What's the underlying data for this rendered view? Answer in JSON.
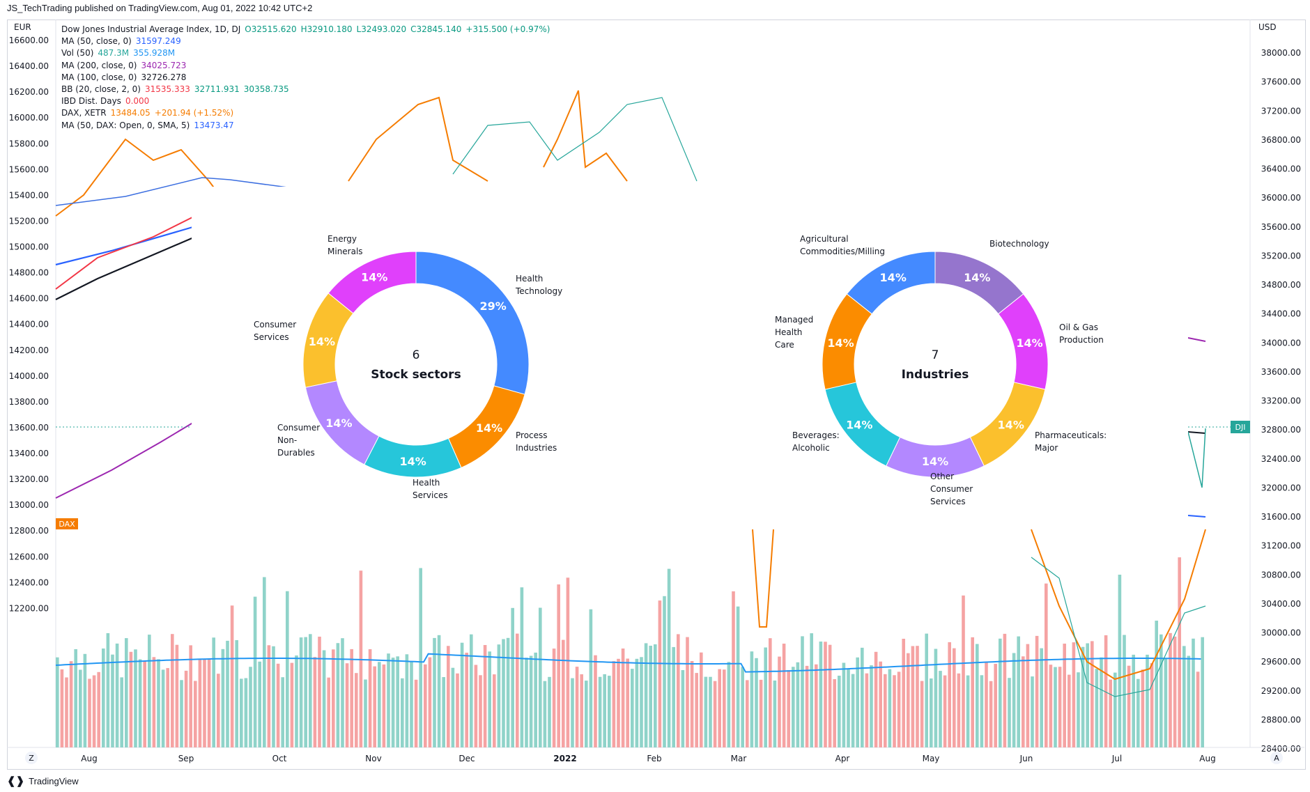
{
  "publisher_line": "JS_TechTrading published on TradingView.com, Aug 01, 2022 10:42 UTC+2",
  "footer_brand": "TradingView",
  "left_currency": "EUR",
  "right_currency": "USD",
  "legend": [
    {
      "label": "Dow Jones Industrial Average Index, 1D, DJ",
      "values": [
        {
          "text": "O32515.620",
          "color": "#089981"
        },
        {
          "text": "H32910.180",
          "color": "#089981"
        },
        {
          "text": "L32493.020",
          "color": "#089981"
        },
        {
          "text": "C32845.140",
          "color": "#089981"
        },
        {
          "text": "+315.500 (+0.97%)",
          "color": "#089981"
        }
      ]
    },
    {
      "label": "MA (50, close, 0)",
      "values": [
        {
          "text": "31597.249",
          "color": "#2962ff"
        }
      ]
    },
    {
      "label": "Vol (50)",
      "values": [
        {
          "text": "487.3M",
          "color": "#26a69a"
        },
        {
          "text": "355.928M",
          "color": "#2196f3"
        }
      ]
    },
    {
      "label": "MA (200, close, 0)",
      "values": [
        {
          "text": "34025.723",
          "color": "#9c27b0"
        }
      ]
    },
    {
      "label": "MA (100, close, 0)",
      "values": [
        {
          "text": "32726.278",
          "color": "#131722"
        }
      ]
    },
    {
      "label": "BB (20, close, 2, 0)",
      "values": [
        {
          "text": "31535.333",
          "color": "#f23645"
        },
        {
          "text": "32711.931",
          "color": "#089981"
        },
        {
          "text": "30358.735",
          "color": "#089981"
        }
      ]
    },
    {
      "label": "IBD Dist. Days",
      "values": [
        {
          "text": "0.000",
          "color": "#f23645"
        }
      ]
    },
    {
      "label": "DAX, XETR",
      "values": [
        {
          "text": "13484.05",
          "color": "#f57c00"
        },
        {
          "text": "+201.94 (+1.52%)",
          "color": "#f57c00"
        }
      ]
    },
    {
      "label": "MA (50, DAX: Open, 0, SMA, 5)",
      "values": [
        {
          "text": "13473.47",
          "color": "#2962ff"
        }
      ]
    }
  ],
  "left_ticks": [
    "16600.00",
    "16400.00",
    "16200.00",
    "16000.00",
    "15800.00",
    "15600.00",
    "15400.00",
    "15200.00",
    "15000.00",
    "14800.00",
    "14600.00",
    "14400.00",
    "14200.00",
    "14000.00",
    "13800.00",
    "13600.00",
    "13400.00",
    "13200.00",
    "13000.00",
    "12800.00",
    "12600.00",
    "12400.00",
    "12200.00"
  ],
  "right_ticks": [
    "38000.00",
    "37600.00",
    "37200.00",
    "36800.00",
    "36400.00",
    "36000.00",
    "35600.00",
    "35200.00",
    "34800.00",
    "34400.00",
    "34000.00",
    "33600.00",
    "33200.00",
    "32800.00",
    "32400.00",
    "32000.00",
    "31600.00",
    "31200.00",
    "30800.00",
    "30400.00",
    "30000.00",
    "29600.00",
    "29200.00",
    "28800.00",
    "28400.00"
  ],
  "time_ticks": [
    "Aug",
    "Sep",
    "Oct",
    "Nov",
    "Dec",
    "2022",
    "Feb",
    "Mar",
    "Apr",
    "May",
    "Jun",
    "Jul",
    "Aug"
  ],
  "badges": {
    "dax": "DAX",
    "dji": "DJI",
    "z": "Z",
    "a": "A"
  },
  "chart_data": [
    {
      "type": "pie",
      "donut": true,
      "center_count": "6",
      "center_label": "Stock sectors",
      "slices": [
        {
          "label": "Health\nTechnology",
          "value": 29,
          "text": "29%",
          "color": "#448aff"
        },
        {
          "label": "Process\nIndustries",
          "value": 14,
          "text": "14%",
          "color": "#fb8c00"
        },
        {
          "label": "Health\nServices",
          "value": 14,
          "text": "14%",
          "color": "#26c6da"
        },
        {
          "label": "Consumer\nNon-\nDurables",
          "value": 14,
          "text": "14%",
          "color": "#b388ff"
        },
        {
          "label": "Consumer\nServices",
          "value": 14,
          "text": "14%",
          "color": "#fbc02d"
        },
        {
          "label": "Energy\nMinerals",
          "value": 14,
          "text": "14%",
          "color": "#e040fb"
        }
      ]
    },
    {
      "type": "pie",
      "donut": true,
      "center_count": "7",
      "center_label": "Industries",
      "slices": [
        {
          "label": "Biotechnology",
          "value": 14,
          "text": "14%",
          "color": "#9575cd"
        },
        {
          "label": "Oil & Gas\nProduction",
          "value": 14,
          "text": "14%",
          "color": "#e040fb"
        },
        {
          "label": "Pharmaceuticals:\nMajor",
          "value": 14,
          "text": "14%",
          "color": "#fbc02d"
        },
        {
          "label": "Other\nConsumer\nServices",
          "value": 14,
          "text": "14%",
          "color": "#b388ff"
        },
        {
          "label": "Beverages:\nAlcoholic",
          "value": 14,
          "text": "14%",
          "color": "#26c6da"
        },
        {
          "label": "Managed\nHealth\nCare",
          "value": 14,
          "text": "14%",
          "color": "#fb8c00"
        },
        {
          "label": "Agricultural\nCommodities/Milling",
          "value": 14,
          "text": "14%",
          "color": "#448aff"
        }
      ]
    }
  ]
}
